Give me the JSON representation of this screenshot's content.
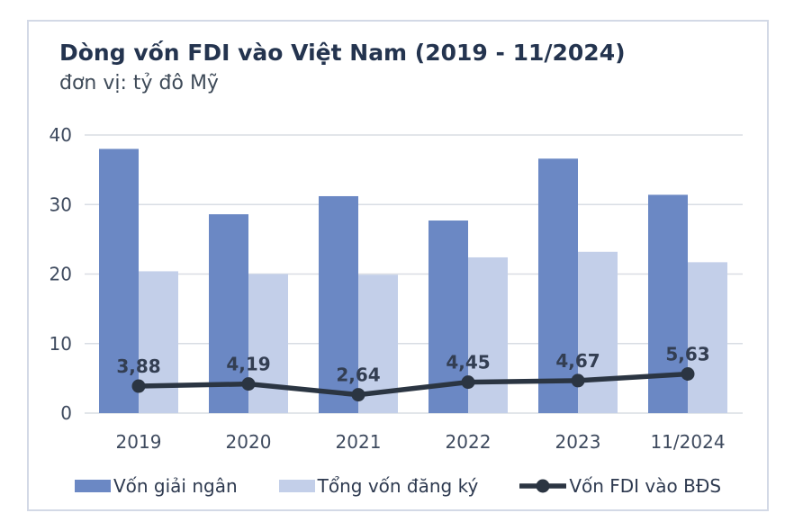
{
  "card": {
    "title": "Dòng vốn FDI vào Việt Nam (2019 - 11/2024)",
    "subtitle": "đơn vị: tỷ đô Mỹ"
  },
  "colors": {
    "bar_dark": "#6b88c4",
    "bar_light": "#c3cfe9",
    "line": "#2b3542",
    "grid": "#d9dde4",
    "title_text": "#24344f",
    "axis_text": "#3e4a5e",
    "data_label_text": "#333e52",
    "card_border": "#d3d9e6"
  },
  "legend": [
    {
      "type": "bar",
      "color_key": "bar_dark",
      "label": "Vốn giải ngân"
    },
    {
      "type": "bar",
      "color_key": "bar_light",
      "label": "Tổng vốn đăng ký"
    },
    {
      "type": "line",
      "color_key": "line",
      "label": "Vốn FDI vào BĐS"
    }
  ],
  "chart_data": {
    "type": "bar+line",
    "title": "Dòng vốn FDI vào Việt Nam (2019 - 11/2024)",
    "subtitle": "đơn vị: tỷ đô Mỹ",
    "categories": [
      "2019",
      "2020",
      "2021",
      "2022",
      "2023",
      "11/2024"
    ],
    "series": [
      {
        "name": "Vốn giải ngân",
        "type": "bar",
        "color_key": "bar_dark",
        "values": [
          38.0,
          28.6,
          31.2,
          27.7,
          36.6,
          31.4
        ]
      },
      {
        "name": "Tổng vốn đăng ký",
        "type": "bar",
        "color_key": "bar_light",
        "values": [
          20.4,
          20.0,
          19.9,
          22.4,
          23.2,
          21.7
        ]
      },
      {
        "name": "Vốn FDI vào BĐS",
        "type": "line",
        "color_key": "line",
        "values": [
          3.88,
          4.19,
          2.64,
          4.45,
          4.67,
          5.63
        ],
        "labels": [
          "3,88",
          "4,19",
          "2,64",
          "4,45",
          "4,67",
          "5,63"
        ]
      }
    ],
    "ylim": [
      0,
      40
    ],
    "yticks": [
      0,
      10,
      20,
      30,
      40
    ],
    "grid": true,
    "legend_position": "bottom"
  }
}
